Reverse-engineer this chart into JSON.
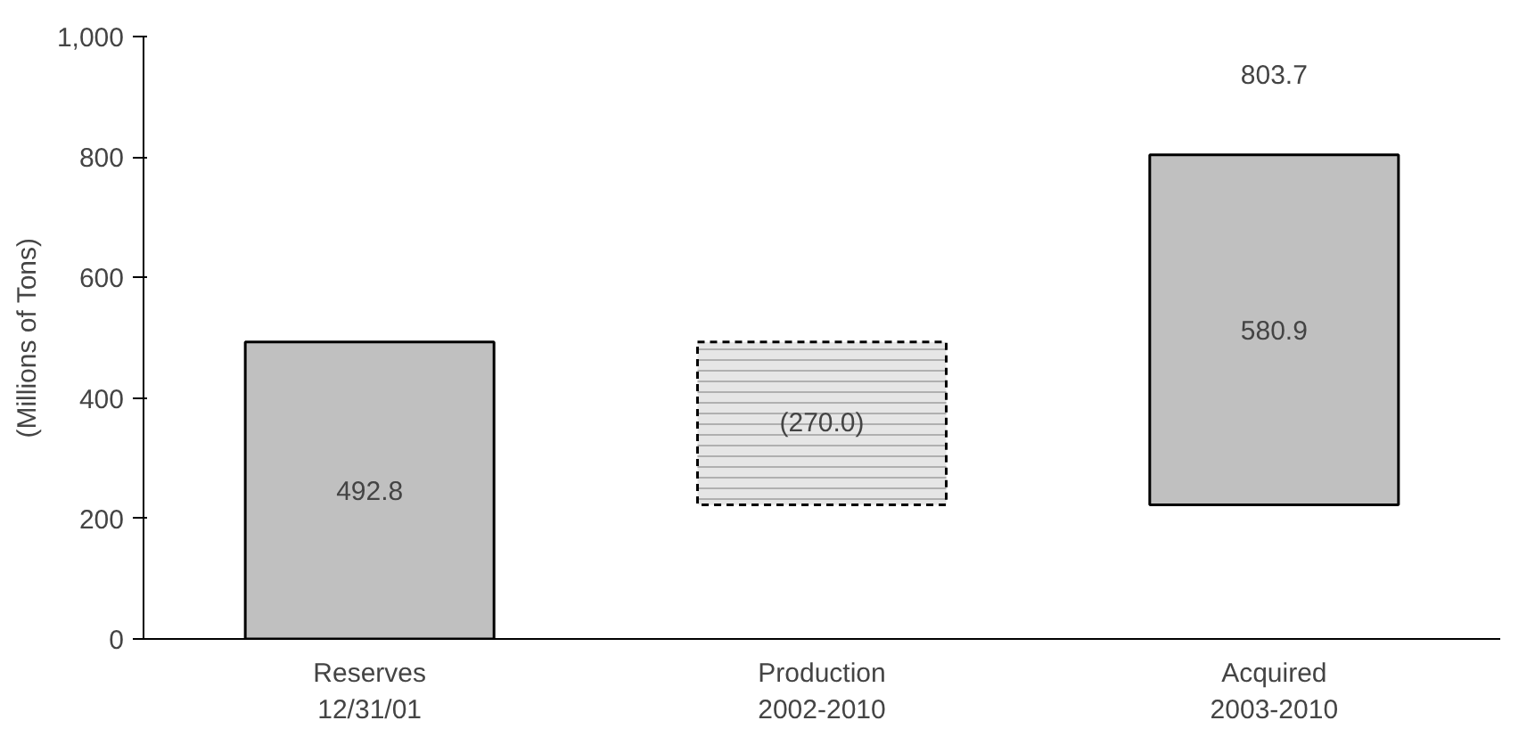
{
  "chart_data": {
    "type": "bar",
    "ylabel": "(Millions of Tons)",
    "categories": [
      "Reserves\n12/31/01",
      "Production\n2002-2010",
      "Acquired\n2003-2010"
    ],
    "values": [
      492.8,
      -270.0,
      580.9
    ],
    "base": [
      0,
      492.8,
      222.8
    ],
    "colors": [
      "#c0c0c0",
      "#e6e6e6",
      "#c0c0c0"
    ],
    "value_labels": [
      "492.8",
      "(270.0)",
      "580.9"
    ],
    "annotations": [
      {
        "text": "803.7",
        "x": "Acquired\n2003-2010",
        "y": 803.7
      }
    ],
    "ylim": [
      0,
      1000
    ],
    "yticks": [
      0,
      200,
      400,
      600,
      800,
      {
        "value": 1000,
        "label": "1,000"
      }
    ],
    "grid": false
  }
}
